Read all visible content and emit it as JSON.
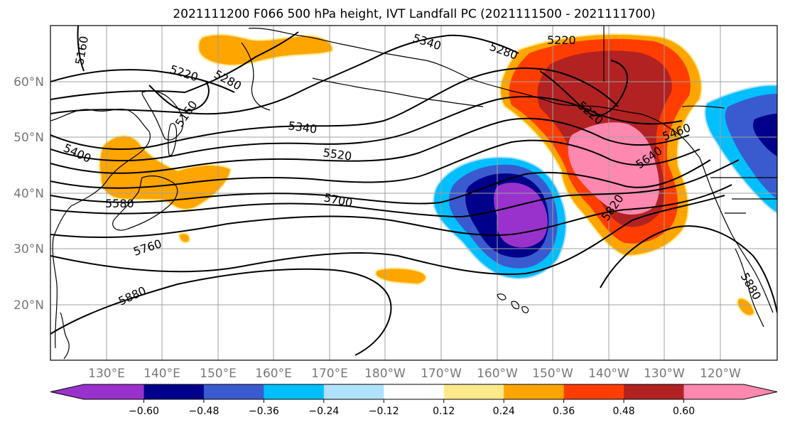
{
  "title": "2021111200 F066 500 hPa height, IVT Landfall PC (2021111500 - 2021111700)",
  "lon_labels": [
    "130°E",
    "140°E",
    "150°E",
    "160°E",
    "170°E",
    "180°W",
    "170°W",
    "160°W",
    "150°W",
    "140°W",
    "130°W",
    "120°W"
  ],
  "lat_labels": [
    "60°N",
    "50°N",
    "40°N",
    "30°N",
    "20°N"
  ],
  "contour_labels": [
    "5160",
    "5220",
    "5280",
    "5160",
    "5400",
    "5580",
    "5760",
    "5880",
    "5340",
    "5520",
    "5700",
    "5340",
    "5280",
    "5220",
    "5220",
    "5460",
    "5640",
    "5820",
    "5880"
  ],
  "colorbar": {
    "colors": [
      "#9932cc",
      "#00008b",
      "#3a5bcf",
      "#00bfff",
      "#b0e2ff",
      "#ffffff",
      "#ffe98a",
      "#ffa500",
      "#ff3d00",
      "#b22222",
      "#ff88b0"
    ],
    "ticks": [
      "−0.60",
      "−0.48",
      "−0.36",
      "−0.24",
      "−0.12",
      "0.12",
      "0.24",
      "0.36",
      "0.48",
      "0.60"
    ]
  },
  "colors": {
    "land_outline": "#000000",
    "contour": "#000000",
    "grid": "#a0a0a0"
  }
}
